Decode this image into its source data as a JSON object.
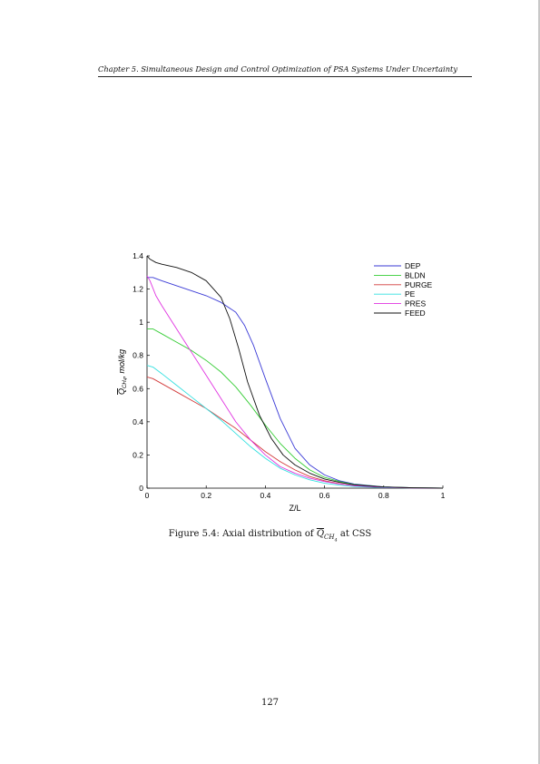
{
  "header": {
    "running_title": "Chapter 5. Simultaneous Design and Control Optimization of PSA Systems Under Uncertainty"
  },
  "figure": {
    "caption_prefix": "Figure 5.4: Axial distribution of ",
    "caption_symbol": "Q",
    "caption_subscript": "CH",
    "caption_subscript2": "4",
    "caption_suffix": " at CSS"
  },
  "chart_data": {
    "type": "line",
    "xlabel": "Z/L",
    "ylabel_symbol": "Q",
    "ylabel_subscript": "CH",
    "ylabel_subscript2": "4",
    "ylabel_unit": ", mol/kg",
    "xlim": [
      0,
      1
    ],
    "ylim": [
      0,
      1.4
    ],
    "x_ticks": [
      "0",
      "0.2",
      "0.4",
      "0.6",
      "0.8",
      "1"
    ],
    "y_ticks": [
      "0",
      "0.2",
      "0.4",
      "0.6",
      "0.8",
      "1",
      "1.2",
      "1.4"
    ],
    "grid": false,
    "legend_position": "top-right",
    "series": [
      {
        "name": "DEP",
        "color": "#3a3ad6",
        "x": [
          0,
          0.02,
          0.05,
          0.1,
          0.15,
          0.2,
          0.25,
          0.3,
          0.33,
          0.36,
          0.4,
          0.45,
          0.5,
          0.55,
          0.6,
          0.65,
          0.7,
          0.8,
          0.9,
          1.0
        ],
        "y": [
          1.27,
          1.27,
          1.25,
          1.22,
          1.19,
          1.16,
          1.12,
          1.06,
          0.98,
          0.86,
          0.66,
          0.42,
          0.24,
          0.14,
          0.08,
          0.045,
          0.025,
          0.008,
          0.002,
          0.0
        ]
      },
      {
        "name": "BLDN",
        "color": "#33cc33",
        "x": [
          0,
          0.02,
          0.05,
          0.1,
          0.15,
          0.2,
          0.25,
          0.3,
          0.35,
          0.4,
          0.45,
          0.5,
          0.55,
          0.6,
          0.65,
          0.7,
          0.8,
          0.9,
          1.0
        ],
        "y": [
          0.96,
          0.96,
          0.93,
          0.88,
          0.83,
          0.77,
          0.7,
          0.61,
          0.5,
          0.38,
          0.27,
          0.18,
          0.11,
          0.065,
          0.04,
          0.022,
          0.007,
          0.002,
          0.0
        ]
      },
      {
        "name": "PURGE",
        "color": "#d23a3a",
        "x": [
          0,
          0.02,
          0.05,
          0.1,
          0.15,
          0.2,
          0.25,
          0.3,
          0.35,
          0.4,
          0.45,
          0.5,
          0.55,
          0.6,
          0.65,
          0.7,
          0.8,
          0.9,
          1.0
        ],
        "y": [
          0.67,
          0.66,
          0.63,
          0.58,
          0.53,
          0.48,
          0.42,
          0.36,
          0.29,
          0.22,
          0.16,
          0.11,
          0.07,
          0.045,
          0.027,
          0.015,
          0.005,
          0.001,
          0.0
        ]
      },
      {
        "name": "PE",
        "color": "#33e0e0",
        "x": [
          0,
          0.02,
          0.05,
          0.1,
          0.15,
          0.2,
          0.25,
          0.3,
          0.35,
          0.4,
          0.45,
          0.5,
          0.55,
          0.6,
          0.65,
          0.7,
          0.8,
          0.9,
          1.0
        ],
        "y": [
          0.74,
          0.73,
          0.69,
          0.62,
          0.55,
          0.48,
          0.41,
          0.33,
          0.25,
          0.18,
          0.12,
          0.08,
          0.05,
          0.03,
          0.018,
          0.01,
          0.003,
          0.001,
          0.0
        ]
      },
      {
        "name": "PRES",
        "color": "#e033e0",
        "x": [
          0,
          0.01,
          0.03,
          0.05,
          0.1,
          0.15,
          0.2,
          0.25,
          0.3,
          0.35,
          0.4,
          0.45,
          0.5,
          0.55,
          0.6,
          0.65,
          0.7,
          0.8,
          0.9,
          1.0
        ],
        "y": [
          1.28,
          1.25,
          1.16,
          1.1,
          0.96,
          0.82,
          0.68,
          0.54,
          0.4,
          0.29,
          0.2,
          0.13,
          0.09,
          0.06,
          0.04,
          0.025,
          0.015,
          0.005,
          0.001,
          0.0
        ]
      },
      {
        "name": "FEED",
        "color": "#111111",
        "x": [
          0,
          0.01,
          0.03,
          0.05,
          0.1,
          0.15,
          0.2,
          0.25,
          0.28,
          0.31,
          0.34,
          0.38,
          0.42,
          0.46,
          0.5,
          0.55,
          0.6,
          0.65,
          0.7,
          0.8,
          0.9,
          1.0
        ],
        "y": [
          1.4,
          1.38,
          1.36,
          1.35,
          1.33,
          1.3,
          1.25,
          1.15,
          1.02,
          0.84,
          0.64,
          0.44,
          0.3,
          0.2,
          0.14,
          0.09,
          0.055,
          0.035,
          0.02,
          0.007,
          0.002,
          0.0
        ]
      }
    ]
  },
  "footer": {
    "page_number": "127"
  }
}
